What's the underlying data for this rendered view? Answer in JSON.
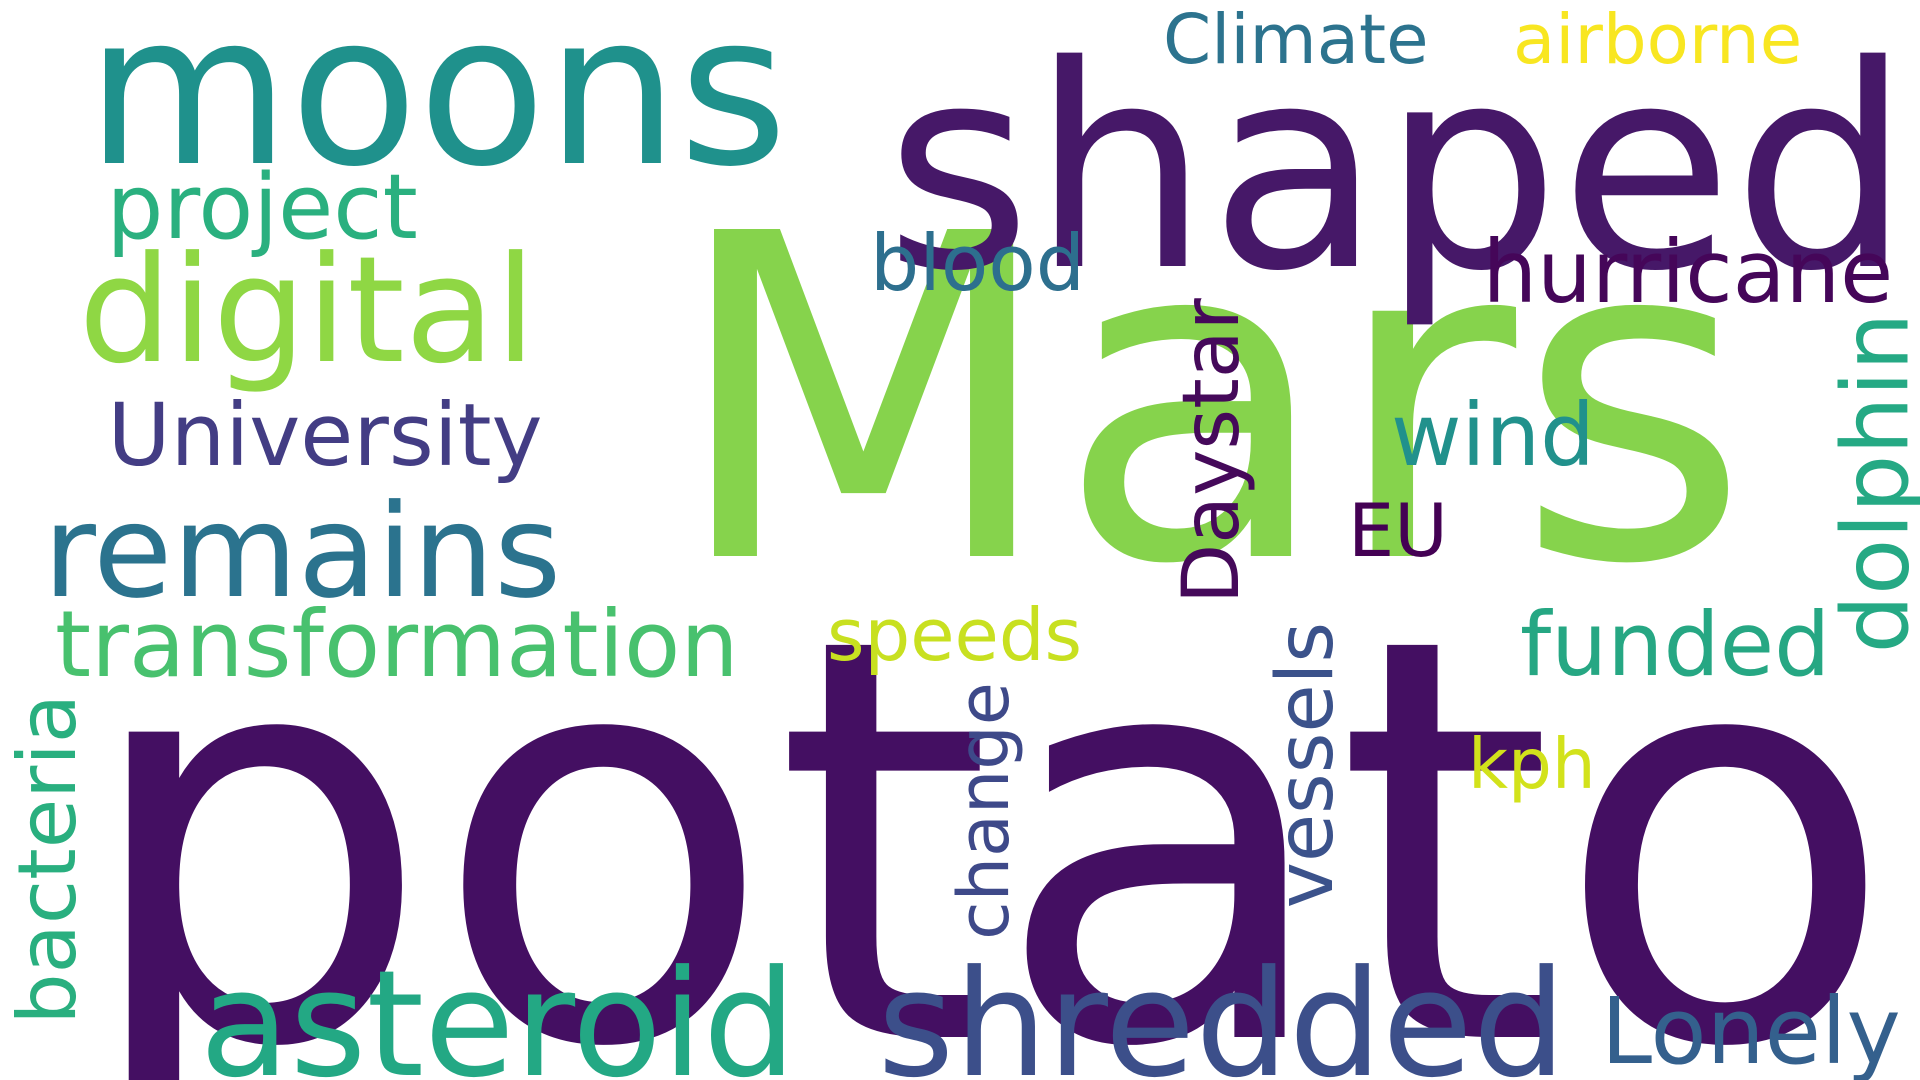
{
  "background": "#ffffff",
  "words": [
    {
      "id": "potato",
      "text": "potato",
      "color": "#440f62"
    },
    {
      "id": "mars",
      "text": "Mars",
      "color": "#86d34c"
    },
    {
      "id": "shaped",
      "text": "shaped",
      "color": "#461868"
    },
    {
      "id": "moons",
      "text": "moons",
      "color": "#1f918c"
    },
    {
      "id": "shredded",
      "text": "shredded",
      "color": "#3c4f8a"
    },
    {
      "id": "asteroid",
      "text": "asteroid",
      "color": "#23a884"
    },
    {
      "id": "digital",
      "text": "digital",
      "color": "#8fd744"
    },
    {
      "id": "remains",
      "text": "remains",
      "color": "#2b738e"
    },
    {
      "id": "transformation",
      "text": "transformation",
      "color": "#48c16e"
    },
    {
      "id": "daystar",
      "text": "Daystar",
      "color": "#45095a"
    },
    {
      "id": "hurricane",
      "text": "hurricane",
      "color": "#450659"
    },
    {
      "id": "university",
      "text": "University",
      "color": "#433d84"
    },
    {
      "id": "dolphin",
      "text": "dolphin",
      "color": "#25a984"
    },
    {
      "id": "funded",
      "text": "funded",
      "color": "#26a783"
    },
    {
      "id": "lonely",
      "text": "Lonely",
      "color": "#34608d"
    },
    {
      "id": "project",
      "text": "project",
      "color": "#2ab07f"
    },
    {
      "id": "climate",
      "text": "Climate",
      "color": "#2c738e"
    },
    {
      "id": "airborne",
      "text": "airborne",
      "color": "#f8e621"
    },
    {
      "id": "blood",
      "text": "blood",
      "color": "#2d6f8e"
    },
    {
      "id": "wind",
      "text": "wind",
      "color": "#21918c"
    },
    {
      "id": "speeds",
      "text": "speeds",
      "color": "#c8e020"
    },
    {
      "id": "bacteria",
      "text": "bacteria",
      "color": "#29af7f"
    },
    {
      "id": "change",
      "text": "change",
      "color": "#3e4989"
    },
    {
      "id": "vessels",
      "text": "vessels",
      "color": "#3b528b"
    },
    {
      "id": "kph",
      "text": "kph",
      "color": "#d2e21b"
    },
    {
      "id": "eu",
      "text": "EU",
      "color": "#440154"
    }
  ]
}
